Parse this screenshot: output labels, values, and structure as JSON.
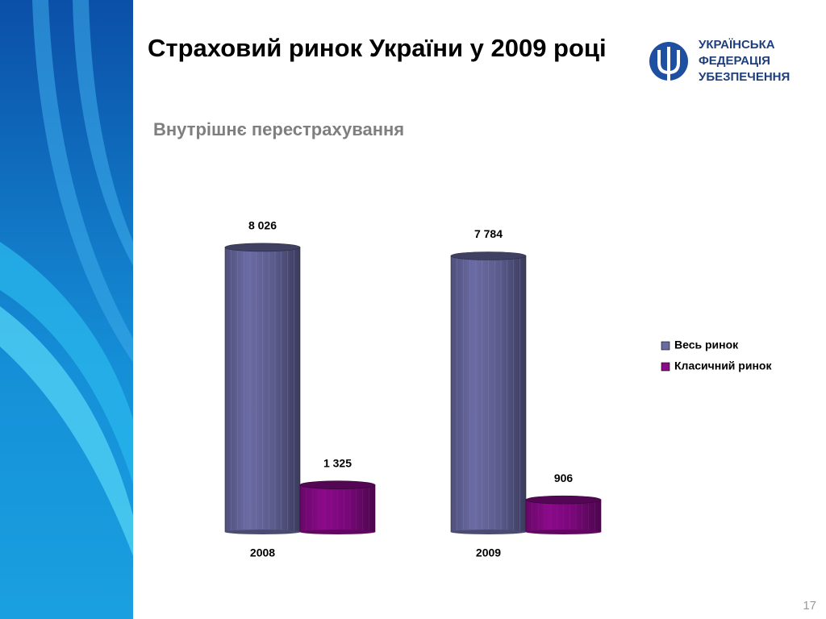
{
  "chart_data": {
    "type": "bar",
    "title": "Страховий ринок України у 2009 році",
    "subtitle": "Внутрішнє перестрахування",
    "categories": [
      "2008",
      "2009"
    ],
    "series": [
      {
        "name": "Весь ринок",
        "color": "#6b6ba3",
        "values": [
          8026,
          7784
        ],
        "value_labels": [
          "8 026",
          "7 784"
        ]
      },
      {
        "name": "Класичний ринок",
        "color": "#8a0a8a",
        "values": [
          1325,
          906
        ],
        "value_labels": [
          "1 325",
          "906"
        ]
      }
    ],
    "ylim": [
      0,
      9000
    ],
    "legend": "right"
  },
  "logo": {
    "lines": [
      "УКРАЇНСЬКА",
      "ФЕДЕРАЦІЯ",
      "УБЕЗПЕЧЕННЯ"
    ]
  },
  "page_number": "17"
}
